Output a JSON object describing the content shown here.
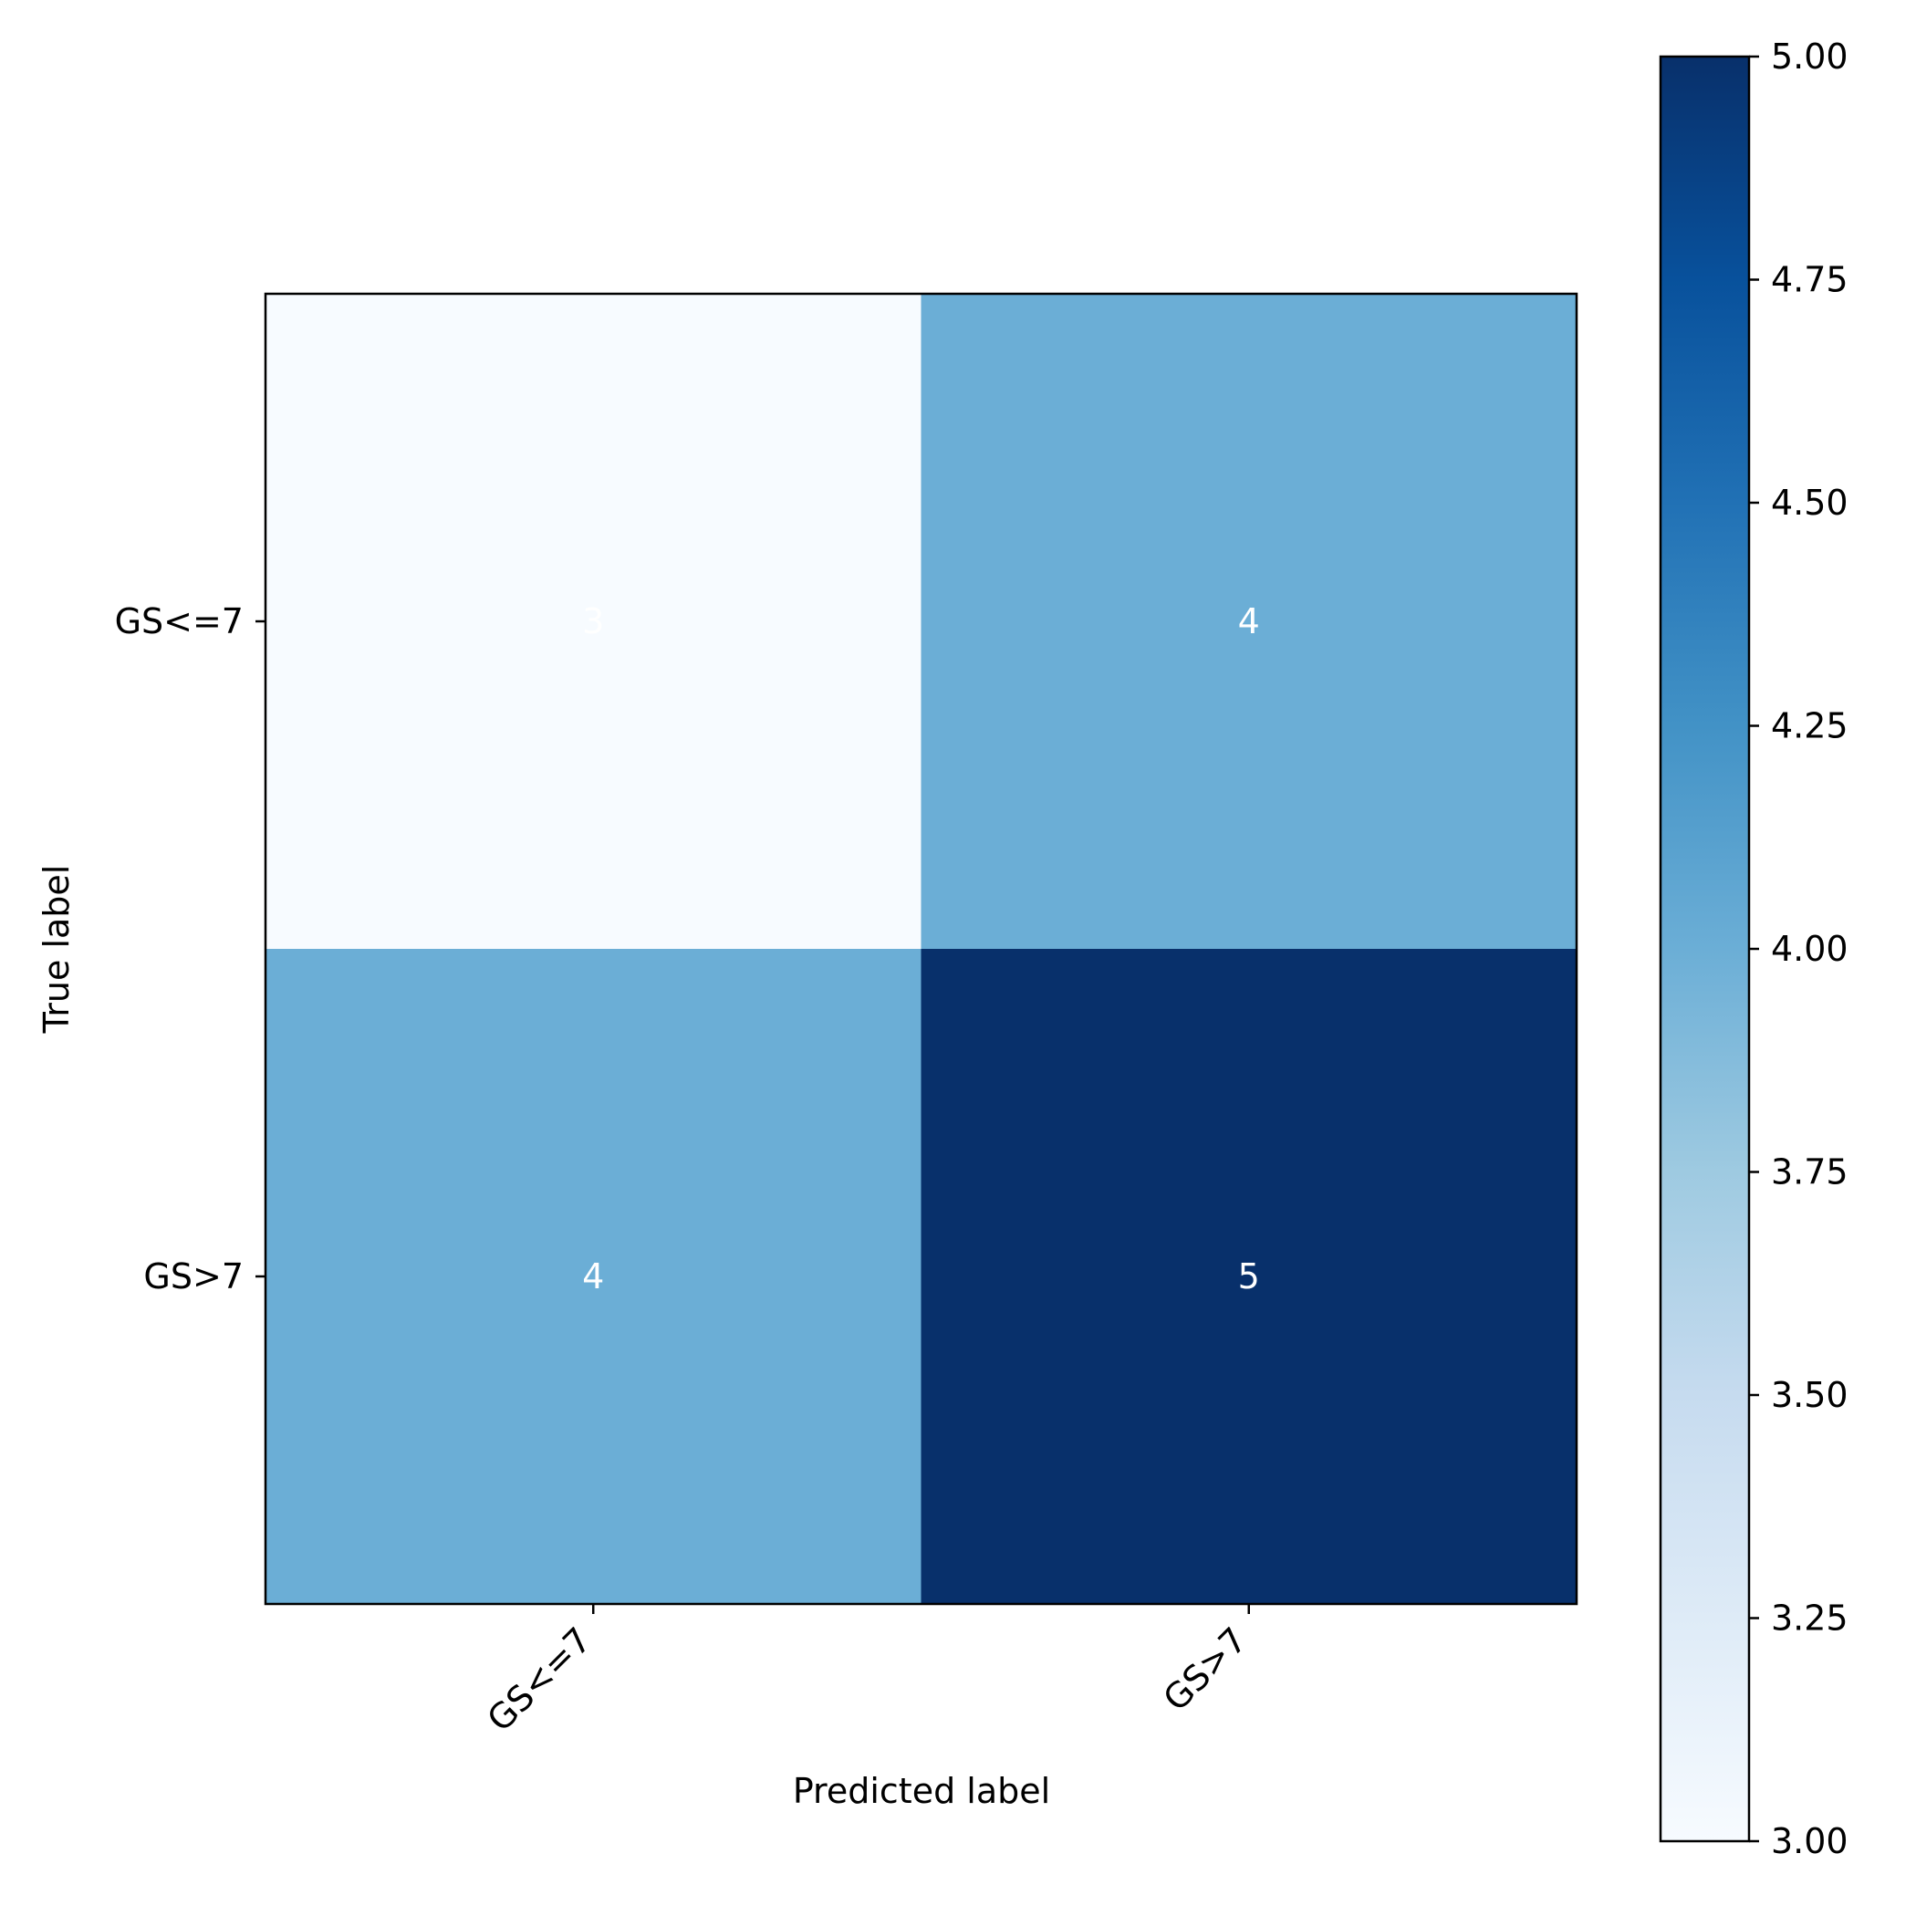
{
  "chart_data": {
    "type": "heatmap",
    "title": "",
    "xlabel": "Predicted label",
    "ylabel": "True label",
    "x_categories": [
      "GS<=7",
      "GS>7"
    ],
    "y_categories": [
      "GS<=7",
      "GS>7"
    ],
    "values": [
      [
        3,
        4
      ],
      [
        4,
        5
      ]
    ],
    "colorbar": {
      "colormap": "Blues",
      "min": 3.0,
      "max": 5.0,
      "ticks": [
        "3.00",
        "3.25",
        "3.50",
        "3.75",
        "4.00",
        "4.25",
        "4.50",
        "4.75",
        "5.00"
      ]
    },
    "cell_text_color": "#ffffff",
    "grid": false
  }
}
